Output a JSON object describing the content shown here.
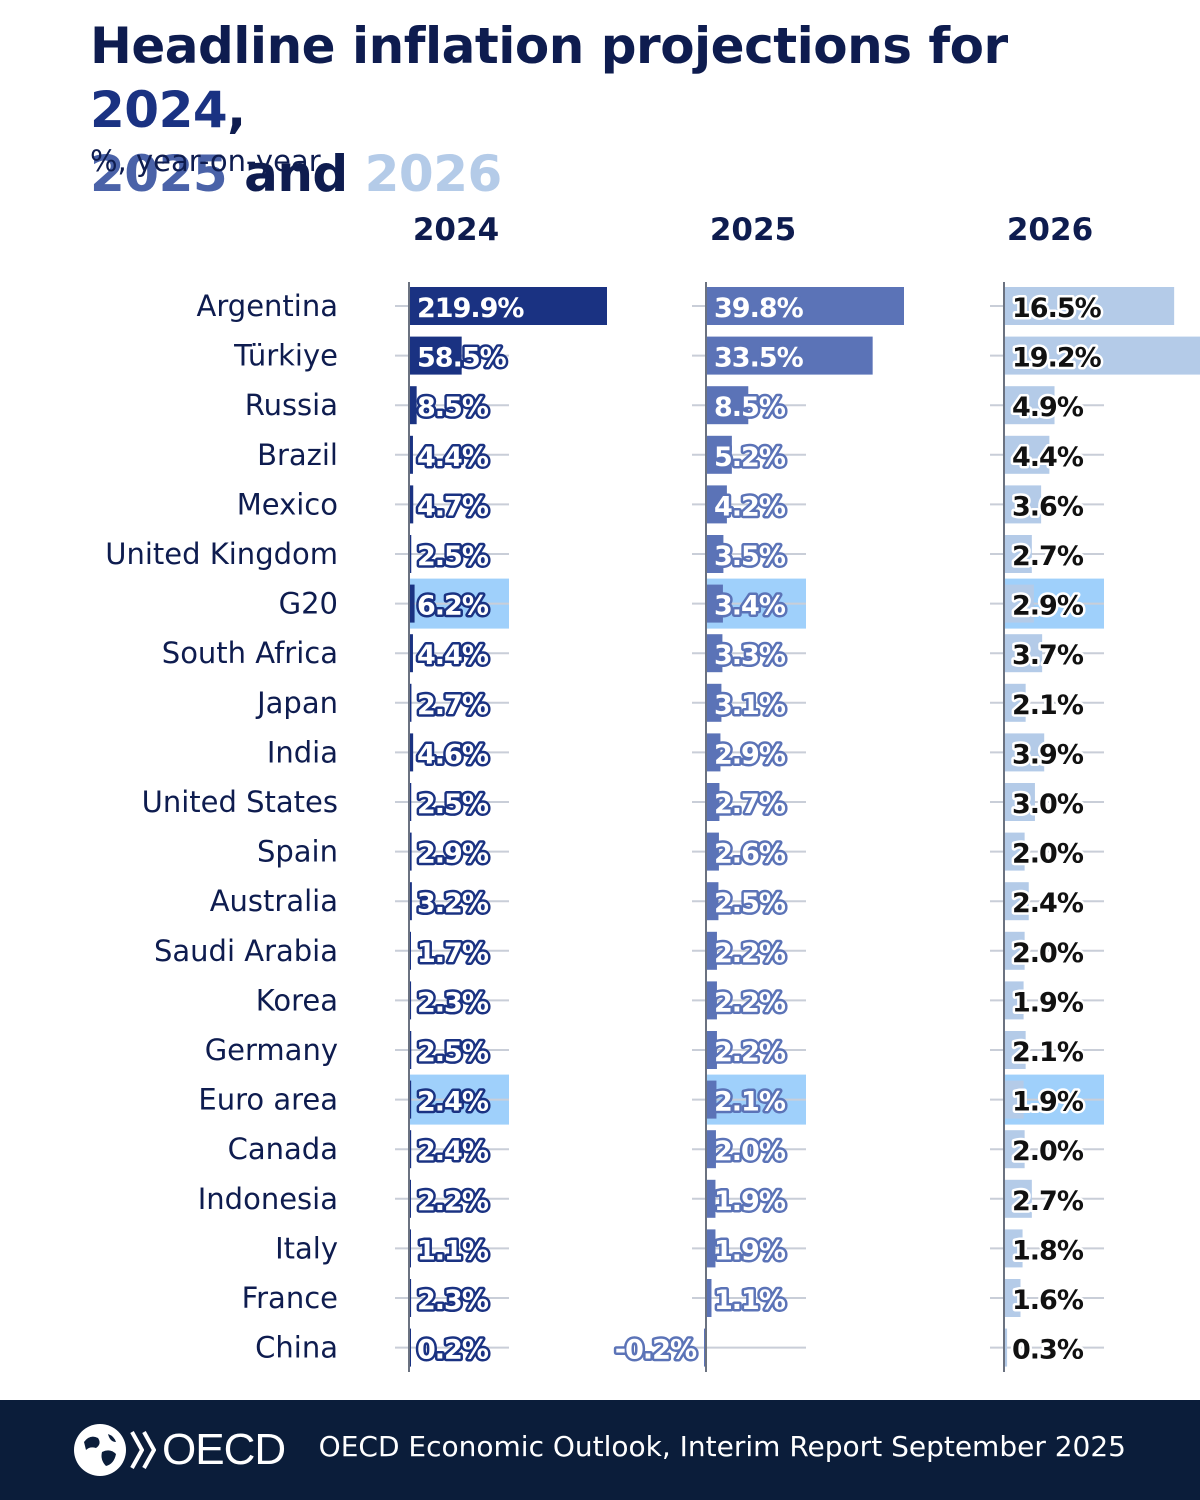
{
  "title": {
    "prefix": "Headline inflation projections for ",
    "y1": "2024",
    "sep1": ",",
    "y2": "2025",
    "and": " and ",
    "y3": "2026"
  },
  "subtitle": "%, year-on-year",
  "footer": {
    "logo_text": "OECD",
    "source": "OECD Economic Outlook, Interim Report September 2025"
  },
  "colors": {
    "text": "#0e1c4f",
    "year2024": "#1a3282",
    "year2025": "#5b73b7",
    "year2026": "#b4cbe8",
    "highlight_rows": "#9fd0fb",
    "footer_bg": "#0b1d3a"
  },
  "chart_data": {
    "type": "bar",
    "xlabel": "",
    "ylabel": "",
    "legend": "none",
    "grid": false,
    "highlighted_categories": [
      "G20",
      "Euro area"
    ],
    "categories": [
      "Argentina",
      "Türkiye",
      "Russia",
      "Brazil",
      "Mexico",
      "United Kingdom",
      "G20",
      "South Africa",
      "Japan",
      "India",
      "United States",
      "Spain",
      "Australia",
      "Saudi Arabia",
      "Korea",
      "Germany",
      "Euro area",
      "Canada",
      "Indonesia",
      "Italy",
      "France",
      "China"
    ],
    "series": [
      {
        "name": "2024",
        "values": [
          219.9,
          58.5,
          8.5,
          4.4,
          4.7,
          2.5,
          6.2,
          4.4,
          2.7,
          4.6,
          2.5,
          2.9,
          3.2,
          1.7,
          2.3,
          2.5,
          2.4,
          2.4,
          2.2,
          1.1,
          2.3,
          0.2
        ]
      },
      {
        "name": "2025",
        "values": [
          39.8,
          33.5,
          8.5,
          5.2,
          4.2,
          3.5,
          3.4,
          3.3,
          3.1,
          2.9,
          2.7,
          2.6,
          2.5,
          2.2,
          2.2,
          2.2,
          2.1,
          2.0,
          1.9,
          1.9,
          1.1,
          -0.2
        ]
      },
      {
        "name": "2026",
        "values": [
          16.5,
          19.2,
          4.9,
          4.4,
          3.6,
          2.7,
          2.9,
          3.7,
          2.1,
          3.9,
          3.0,
          2.0,
          2.4,
          2.0,
          1.9,
          2.1,
          1.9,
          2.0,
          2.7,
          1.8,
          1.6,
          0.3
        ]
      }
    ]
  }
}
